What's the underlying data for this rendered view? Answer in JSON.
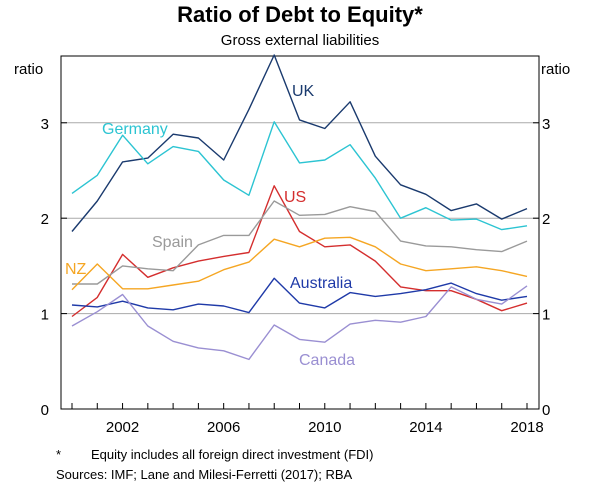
{
  "chart_data": {
    "type": "line",
    "title": "Ratio of Debt to Equity*",
    "subtitle": "Gross external liabilities",
    "ylabel_left": "ratio",
    "ylabel_right": "ratio",
    "ylim": [
      0,
      3.7
    ],
    "yticks": [
      0,
      1,
      2,
      3
    ],
    "xlim": [
      2000,
      2018
    ],
    "xticks": [
      2002,
      2006,
      2010,
      2014,
      2018
    ],
    "grid": true,
    "footnote_marker": "*",
    "footnote": "Equity includes all foreign direct investment (FDI)",
    "sources": "Sources:  IMF; Lane and Milesi-Ferretti (2017); RBA",
    "x": [
      2000,
      2001,
      2002,
      2003,
      2004,
      2005,
      2006,
      2007,
      2008,
      2009,
      2010,
      2011,
      2012,
      2013,
      2014,
      2015,
      2016,
      2017,
      2018
    ],
    "series": [
      {
        "name": "UK",
        "color": "#1a3a6e",
        "values": [
          1.86,
          2.18,
          2.59,
          2.63,
          2.88,
          2.84,
          2.61,
          3.14,
          3.71,
          3.03,
          2.94,
          3.22,
          2.65,
          2.35,
          2.25,
          2.08,
          2.15,
          1.99,
          2.1
        ]
      },
      {
        "name": "Germany",
        "color": "#2cc4d2",
        "values": [
          2.26,
          2.45,
          2.87,
          2.57,
          2.75,
          2.7,
          2.4,
          2.24,
          3.01,
          2.58,
          2.61,
          2.77,
          2.42,
          2.0,
          2.11,
          1.98,
          1.99,
          1.88,
          1.92
        ]
      },
      {
        "name": "US",
        "color": "#d42e2e",
        "values": [
          0.97,
          1.17,
          1.62,
          1.38,
          1.48,
          1.55,
          1.6,
          1.64,
          2.34,
          1.86,
          1.7,
          1.72,
          1.55,
          1.28,
          1.24,
          1.24,
          1.15,
          1.03,
          1.11
        ]
      },
      {
        "name": "Spain",
        "color": "#9a9a9a",
        "values": [
          1.31,
          1.31,
          1.5,
          1.47,
          1.45,
          1.72,
          1.82,
          1.82,
          2.18,
          2.03,
          2.04,
          2.12,
          2.07,
          1.76,
          1.71,
          1.7,
          1.67,
          1.65,
          1.76
        ]
      },
      {
        "name": "NZ",
        "color": "#f5a623",
        "values": [
          1.25,
          1.52,
          1.26,
          1.26,
          1.3,
          1.34,
          1.46,
          1.54,
          1.78,
          1.7,
          1.79,
          1.8,
          1.7,
          1.52,
          1.45,
          1.47,
          1.49,
          1.45,
          1.39
        ]
      },
      {
        "name": "Australia",
        "color": "#1f3aa8",
        "values": [
          1.09,
          1.07,
          1.13,
          1.06,
          1.04,
          1.1,
          1.08,
          1.01,
          1.37,
          1.11,
          1.06,
          1.22,
          1.18,
          1.21,
          1.25,
          1.32,
          1.21,
          1.14,
          1.18
        ]
      },
      {
        "name": "Canada",
        "color": "#9a8fd2",
        "values": [
          0.87,
          1.02,
          1.2,
          0.87,
          0.71,
          0.64,
          0.61,
          0.52,
          0.88,
          0.73,
          0.7,
          0.89,
          0.93,
          0.91,
          0.97,
          1.28,
          1.15,
          1.1,
          1.29
        ]
      }
    ],
    "series_labels": [
      {
        "name": "UK",
        "text": "UK"
      },
      {
        "name": "Germany",
        "text": "Germany"
      },
      {
        "name": "US",
        "text": "US"
      },
      {
        "name": "Spain",
        "text": "Spain"
      },
      {
        "name": "NZ",
        "text": "NZ"
      },
      {
        "name": "Australia",
        "text": "Australia"
      },
      {
        "name": "Canada",
        "text": "Canada"
      }
    ]
  }
}
